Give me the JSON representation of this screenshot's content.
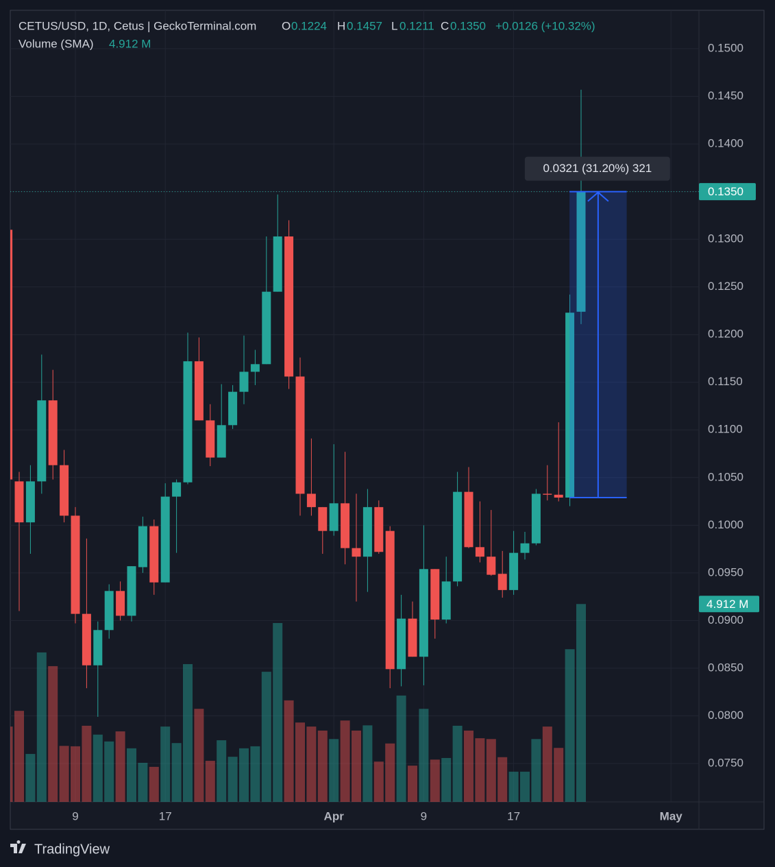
{
  "chart_data": {
    "type": "candlestick",
    "header": {
      "symbol": "CETUS/USD, 1D, Cetus | GeckoTerminal.com",
      "o_label": "O",
      "o_value": "0.1224",
      "h_label": "H",
      "h_value": "0.1457",
      "l_label": "L",
      "l_value": "0.1211",
      "c_label": "C",
      "c_value": "0.1350",
      "change": "+0.0126 (+10.32%)",
      "volume_title": "Volume (SMA)",
      "volume_value": "4.912 M"
    },
    "categories": [
      null,
      null,
      null,
      null,
      null,
      null,
      "9",
      null,
      null,
      null,
      null,
      null,
      null,
      null,
      "17",
      null,
      null,
      null,
      null,
      null,
      null,
      null,
      null,
      null,
      null,
      null,
      null,
      null,
      null,
      "Apr",
      null,
      null,
      null,
      null,
      null,
      null,
      null,
      "9",
      null,
      null,
      null,
      null,
      null,
      null,
      null,
      "17",
      null,
      null,
      null,
      null,
      null,
      null,
      null,
      null,
      null,
      null,
      null,
      null,
      null,
      "May",
      null,
      null
    ],
    "open": [
      0.131,
      0.1046,
      0.1003,
      0.1046,
      0.1131,
      0.1063,
      0.101,
      0.0907,
      0.0853,
      0.089,
      0.0931,
      0.0905,
      0.0956,
      0.0999,
      0.094,
      0.103,
      0.1045,
      0.1172,
      0.111,
      0.1071,
      0.1105,
      0.114,
      0.1161,
      0.1169,
      0.1245,
      0.1303,
      0.1156,
      0.1033,
      0.1019,
      0.0994,
      0.1023,
      0.0976,
      0.0967,
      0.1019,
      0.0994,
      0.0849,
      0.0902,
      0.0862,
      0.0954,
      0.0901,
      0.0941,
      0.1035,
      0.0977,
      0.0967,
      0.0949,
      0.0932,
      0.0971,
      0.0981,
      0.1033,
      0.1032,
      0.1029,
      0.1224,
      null,
      null,
      null,
      null,
      null,
      null,
      null,
      null,
      null,
      null
    ],
    "high": [
      0.131,
      0.1056,
      0.1063,
      0.1179,
      0.1163,
      0.1079,
      0.1019,
      0.0986,
      0.0899,
      0.0938,
      0.0941,
      0.0957,
      0.1009,
      0.1006,
      0.1044,
      0.1048,
      0.1202,
      0.1197,
      0.1127,
      0.1148,
      0.1147,
      0.1199,
      0.1184,
      0.1303,
      0.1347,
      0.132,
      0.1176,
      0.1091,
      0.1019,
      0.1085,
      0.1077,
      0.1033,
      0.1038,
      0.1026,
      0.0999,
      0.0927,
      0.092,
      0.1,
      0.0954,
      0.0967,
      0.1056,
      0.1061,
      0.1025,
      0.1016,
      0.0973,
      0.0994,
      0.0993,
      0.1038,
      0.1063,
      0.1108,
      0.1242,
      0.1457,
      null,
      null,
      null,
      null,
      null,
      null,
      null,
      null,
      null,
      null
    ],
    "low": [
      0.104,
      0.091,
      0.097,
      0.1033,
      0.1048,
      0.1003,
      0.0897,
      0.0829,
      0.0799,
      0.0881,
      0.09,
      0.0899,
      0.095,
      0.0927,
      0.094,
      0.0971,
      0.1043,
      0.111,
      0.1062,
      0.1071,
      0.1101,
      0.1127,
      0.1147,
      0.1169,
      0.1245,
      0.1143,
      0.101,
      0.101,
      0.097,
      0.0989,
      0.0959,
      0.092,
      0.093,
      0.097,
      0.0829,
      0.0831,
      0.0862,
      0.0832,
      0.0881,
      0.0897,
      0.0936,
      0.0976,
      0.0961,
      0.0947,
      0.0924,
      0.0927,
      0.0964,
      0.0979,
      0.1026,
      0.1025,
      0.102,
      0.1211,
      null,
      null,
      null,
      null,
      null,
      null,
      null,
      null,
      null,
      null
    ],
    "close": [
      0.1048,
      0.1003,
      0.1046,
      0.1131,
      0.1063,
      0.101,
      0.0907,
      0.0853,
      0.089,
      0.0931,
      0.0905,
      0.0957,
      0.0999,
      0.094,
      0.103,
      0.1045,
      0.1172,
      0.111,
      0.1071,
      0.1105,
      0.114,
      0.1161,
      0.1169,
      0.1245,
      0.1303,
      0.1156,
      0.1033,
      0.1019,
      0.0994,
      0.1023,
      0.0976,
      0.0967,
      0.1019,
      0.0972,
      0.0849,
      0.0902,
      0.0862,
      0.0954,
      0.0901,
      0.0941,
      0.1035,
      0.0977,
      0.0967,
      0.0948,
      0.0932,
      0.0971,
      0.0981,
      0.1033,
      0.1032,
      0.1029,
      0.1223,
      0.135,
      null,
      null,
      null,
      null,
      null,
      null,
      null,
      null,
      null,
      null
    ],
    "volume": [
      1.87,
      2.26,
      1.19,
      3.71,
      3.37,
      1.39,
      1.38,
      1.89,
      1.67,
      1.5,
      1.75,
      1.33,
      0.97,
      0.87,
      1.87,
      1.46,
      3.42,
      2.31,
      1.02,
      1.53,
      1.12,
      1.33,
      1.38,
      3.23,
      4.44,
      2.52,
      1.97,
      1.87,
      1.77,
      1.56,
      2.02,
      1.77,
      1.9,
      1.0,
      1.45,
      2.64,
      0.9,
      2.31,
      1.05,
      1.09,
      1.89,
      1.77,
      1.58,
      1.56,
      1.11,
      0.75,
      0.75,
      1.56,
      1.87,
      1.34,
      3.79,
      4.912,
      null,
      null,
      null,
      null,
      null,
      null,
      null,
      null,
      null,
      null
    ],
    "up_color": "#26a69a",
    "down_color": "#ef5350",
    "ylim": [
      0.07097,
      0.15403
    ],
    "yticks": [
      {
        "value": 0.075,
        "label": "0.0750"
      },
      {
        "value": 0.08,
        "label": "0.0800"
      },
      {
        "value": 0.085,
        "label": "0.0850"
      },
      {
        "value": 0.09,
        "label": "0.0900"
      },
      {
        "value": 0.095,
        "label": "0.0950"
      },
      {
        "value": 0.1,
        "label": "0.1000"
      },
      {
        "value": 0.105,
        "label": "0.1050"
      },
      {
        "value": 0.11,
        "label": "0.1100"
      },
      {
        "value": 0.115,
        "label": "0.1150"
      },
      {
        "value": 0.12,
        "label": "0.1200"
      },
      {
        "value": 0.125,
        "label": "0.1250"
      },
      {
        "value": 0.13,
        "label": "0.1300"
      },
      {
        "value": 0.135,
        "label": "0.1350"
      },
      {
        "value": 0.14,
        "label": "0.1400"
      },
      {
        "value": 0.145,
        "label": "0.1450"
      },
      {
        "value": 0.15,
        "label": "0.1500"
      }
    ],
    "volume_lim": [
      0,
      19.65
    ],
    "last_price": {
      "value": 0.135,
      "label": "0.1350"
    },
    "last_volume": {
      "value": 4.912,
      "label": "4.912 M"
    },
    "measure": {
      "from": 0.1029,
      "to": 0.135,
      "label": "0.0321 (31.20%) 321"
    },
    "grid": true,
    "footer": "TradingView"
  }
}
